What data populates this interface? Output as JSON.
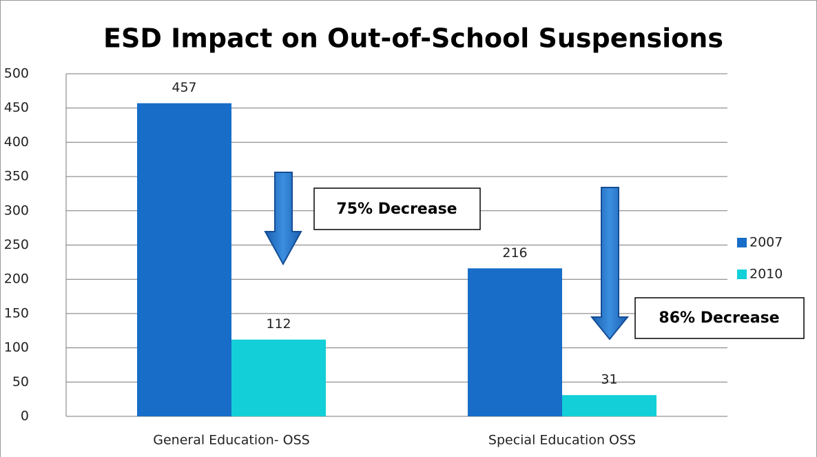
{
  "chart_data": {
    "type": "bar",
    "title": "ESD Impact on Out-of-School Suspensions",
    "categories": [
      "General Education- OSS",
      "Special Education OSS"
    ],
    "series": [
      {
        "name": "2007",
        "color": "#176dc8",
        "values": [
          457,
          216
        ]
      },
      {
        "name": "2010",
        "color": "#13cfd8",
        "values": [
          112,
          31
        ]
      }
    ],
    "ylim": [
      0,
      500
    ],
    "yticks": [
      0,
      50,
      100,
      150,
      200,
      250,
      300,
      350,
      400,
      450,
      500
    ],
    "grid": true,
    "legend": "right",
    "annotations": [
      "75% Decrease",
      "86% Decrease"
    ]
  }
}
